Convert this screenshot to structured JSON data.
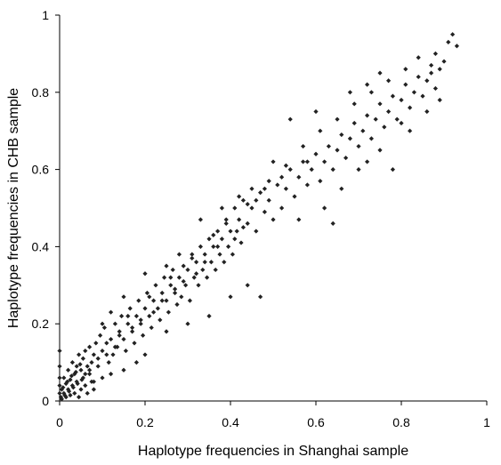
{
  "chart_data": {
    "type": "scatter",
    "xlabel": "Haplotype frequencies in Shanghai sample",
    "ylabel": "Haplotype frequencies in CHB sample",
    "xlim": [
      0,
      1
    ],
    "ylim": [
      0,
      1
    ],
    "xticks": [
      "0",
      "0.2",
      "0.4",
      "0.6",
      "0.8",
      "1"
    ],
    "yticks": [
      "0",
      "0.2",
      "0.4",
      "0.6",
      "0.8",
      "1"
    ],
    "grid": false,
    "legend": "none",
    "marker_color": "#222222",
    "points": [
      [
        0.005,
        0.005
      ],
      [
        0.01,
        0.02
      ],
      [
        0.015,
        0.01
      ],
      [
        0.02,
        0.03
      ],
      [
        0.025,
        0.015
      ],
      [
        0.03,
        0.04
      ],
      [
        0.035,
        0.02
      ],
      [
        0.04,
        0.05
      ],
      [
        0.045,
        0.01
      ],
      [
        0.05,
        0.03
      ],
      [
        0.055,
        0.06
      ],
      [
        0.06,
        0.04
      ],
      [
        0.065,
        0.02
      ],
      [
        0.07,
        0.07
      ],
      [
        0.075,
        0.05
      ],
      [
        0.08,
        0.03
      ],
      [
        0.005,
        0.03
      ],
      [
        0.01,
        0.06
      ],
      [
        0.015,
        0.045
      ],
      [
        0.02,
        0.08
      ],
      [
        0.025,
        0.055
      ],
      [
        0.03,
        0.1
      ],
      [
        0.035,
        0.07
      ],
      [
        0.04,
        0.09
      ],
      [
        0.045,
        0.12
      ],
      [
        0.05,
        0.08
      ],
      [
        0.055,
        0.11
      ],
      [
        0.06,
        0.13
      ],
      [
        0.065,
        0.09
      ],
      [
        0.07,
        0.14
      ],
      [
        0.075,
        0.1
      ],
      [
        0.08,
        0.12
      ],
      [
        0.0,
        0.13
      ],
      [
        0.0,
        0.09
      ],
      [
        0.0,
        0.06
      ],
      [
        0.0,
        0.04
      ],
      [
        0.0,
        0.02
      ],
      [
        0.003,
        0.01
      ],
      [
        0.008,
        0.035
      ],
      [
        0.012,
        0.015
      ],
      [
        0.018,
        0.05
      ],
      [
        0.022,
        0.025
      ],
      [
        0.028,
        0.065
      ],
      [
        0.032,
        0.035
      ],
      [
        0.038,
        0.075
      ],
      [
        0.042,
        0.045
      ],
      [
        0.048,
        0.095
      ],
      [
        0.052,
        0.055
      ],
      [
        0.085,
        0.15
      ],
      [
        0.09,
        0.11
      ],
      [
        0.095,
        0.17
      ],
      [
        0.1,
        0.13
      ],
      [
        0.105,
        0.19
      ],
      [
        0.11,
        0.15
      ],
      [
        0.115,
        0.1
      ],
      [
        0.12,
        0.16
      ],
      [
        0.125,
        0.12
      ],
      [
        0.13,
        0.2
      ],
      [
        0.135,
        0.14
      ],
      [
        0.14,
        0.18
      ],
      [
        0.145,
        0.22
      ],
      [
        0.15,
        0.16
      ],
      [
        0.155,
        0.13
      ],
      [
        0.16,
        0.2
      ],
      [
        0.165,
        0.24
      ],
      [
        0.17,
        0.18
      ],
      [
        0.175,
        0.15
      ],
      [
        0.18,
        0.22
      ],
      [
        0.185,
        0.26
      ],
      [
        0.19,
        0.2
      ],
      [
        0.195,
        0.17
      ],
      [
        0.2,
        0.24
      ],
      [
        0.205,
        0.28
      ],
      [
        0.21,
        0.22
      ],
      [
        0.215,
        0.19
      ],
      [
        0.22,
        0.26
      ],
      [
        0.225,
        0.3
      ],
      [
        0.23,
        0.24
      ],
      [
        0.235,
        0.21
      ],
      [
        0.24,
        0.28
      ],
      [
        0.245,
        0.32
      ],
      [
        0.25,
        0.26
      ],
      [
        0.255,
        0.23
      ],
      [
        0.26,
        0.3
      ],
      [
        0.265,
        0.34
      ],
      [
        0.27,
        0.28
      ],
      [
        0.275,
        0.25
      ],
      [
        0.28,
        0.32
      ],
      [
        0.285,
        0.27
      ],
      [
        0.29,
        0.35
      ],
      [
        0.295,
        0.3
      ],
      [
        0.3,
        0.34
      ],
      [
        0.305,
        0.26
      ],
      [
        0.31,
        0.38
      ],
      [
        0.315,
        0.32
      ],
      [
        0.32,
        0.36
      ],
      [
        0.325,
        0.3
      ],
      [
        0.33,
        0.4
      ],
      [
        0.335,
        0.34
      ],
      [
        0.34,
        0.38
      ],
      [
        0.345,
        0.32
      ],
      [
        0.35,
        0.42
      ],
      [
        0.355,
        0.36
      ],
      [
        0.36,
        0.4
      ],
      [
        0.365,
        0.34
      ],
      [
        0.37,
        0.44
      ],
      [
        0.375,
        0.38
      ],
      [
        0.38,
        0.42
      ],
      [
        0.385,
        0.36
      ],
      [
        0.39,
        0.46
      ],
      [
        0.395,
        0.4
      ],
      [
        0.4,
        0.44
      ],
      [
        0.405,
        0.38
      ],
      [
        0.41,
        0.5
      ],
      [
        0.415,
        0.44
      ],
      [
        0.42,
        0.47
      ],
      [
        0.425,
        0.41
      ],
      [
        0.43,
        0.52
      ],
      [
        0.44,
        0.46
      ],
      [
        0.45,
        0.5
      ],
      [
        0.46,
        0.44
      ],
      [
        0.47,
        0.54
      ],
      [
        0.48,
        0.49
      ],
      [
        0.49,
        0.52
      ],
      [
        0.5,
        0.47
      ],
      [
        0.51,
        0.56
      ],
      [
        0.52,
        0.5
      ],
      [
        0.53,
        0.55
      ],
      [
        0.54,
        0.6
      ],
      [
        0.55,
        0.53
      ],
      [
        0.56,
        0.58
      ],
      [
        0.57,
        0.62
      ],
      [
        0.58,
        0.56
      ],
      [
        0.59,
        0.6
      ],
      [
        0.6,
        0.64
      ],
      [
        0.61,
        0.57
      ],
      [
        0.62,
        0.62
      ],
      [
        0.63,
        0.66
      ],
      [
        0.64,
        0.6
      ],
      [
        0.65,
        0.65
      ],
      [
        0.66,
        0.69
      ],
      [
        0.67,
        0.63
      ],
      [
        0.68,
        0.68
      ],
      [
        0.69,
        0.72
      ],
      [
        0.7,
        0.66
      ],
      [
        0.71,
        0.7
      ],
      [
        0.72,
        0.74
      ],
      [
        0.73,
        0.68
      ],
      [
        0.74,
        0.73
      ],
      [
        0.75,
        0.77
      ],
      [
        0.76,
        0.71
      ],
      [
        0.77,
        0.75
      ],
      [
        0.78,
        0.79
      ],
      [
        0.79,
        0.73
      ],
      [
        0.8,
        0.78
      ],
      [
        0.81,
        0.82
      ],
      [
        0.82,
        0.76
      ],
      [
        0.83,
        0.8
      ],
      [
        0.84,
        0.84
      ],
      [
        0.85,
        0.79
      ],
      [
        0.86,
        0.83
      ],
      [
        0.87,
        0.87
      ],
      [
        0.88,
        0.81
      ],
      [
        0.89,
        0.86
      ],
      [
        0.91,
        0.93
      ],
      [
        0.93,
        0.92
      ],
      [
        0.92,
        0.95
      ],
      [
        0.88,
        0.9
      ],
      [
        0.54,
        0.73
      ],
      [
        0.6,
        0.75
      ],
      [
        0.68,
        0.8
      ],
      [
        0.72,
        0.82
      ],
      [
        0.75,
        0.85
      ],
      [
        0.45,
        0.55
      ],
      [
        0.5,
        0.62
      ],
      [
        0.33,
        0.47
      ],
      [
        0.38,
        0.5
      ],
      [
        0.25,
        0.35
      ],
      [
        0.2,
        0.33
      ],
      [
        0.15,
        0.27
      ],
      [
        0.12,
        0.23
      ],
      [
        0.1,
        0.2
      ],
      [
        0.28,
        0.38
      ],
      [
        0.42,
        0.53
      ],
      [
        0.47,
        0.27
      ],
      [
        0.44,
        0.3
      ],
      [
        0.4,
        0.27
      ],
      [
        0.35,
        0.22
      ],
      [
        0.3,
        0.2
      ],
      [
        0.25,
        0.18
      ],
      [
        0.2,
        0.12
      ],
      [
        0.18,
        0.1
      ],
      [
        0.15,
        0.08
      ],
      [
        0.12,
        0.07
      ],
      [
        0.1,
        0.06
      ],
      [
        0.08,
        0.05
      ],
      [
        0.56,
        0.47
      ],
      [
        0.62,
        0.5
      ],
      [
        0.66,
        0.55
      ],
      [
        0.7,
        0.6
      ],
      [
        0.75,
        0.65
      ],
      [
        0.78,
        0.6
      ],
      [
        0.82,
        0.7
      ],
      [
        0.86,
        0.75
      ],
      [
        0.89,
        0.78
      ],
      [
        0.64,
        0.46
      ],
      [
        0.72,
        0.62
      ],
      [
        0.8,
        0.72
      ],
      [
        0.58,
        0.62
      ],
      [
        0.52,
        0.58
      ],
      [
        0.48,
        0.55
      ],
      [
        0.46,
        0.52
      ],
      [
        0.43,
        0.45
      ],
      [
        0.41,
        0.42
      ],
      [
        0.37,
        0.4
      ],
      [
        0.34,
        0.36
      ],
      [
        0.32,
        0.33
      ],
      [
        0.29,
        0.31
      ],
      [
        0.27,
        0.29
      ],
      [
        0.24,
        0.26
      ],
      [
        0.22,
        0.23
      ],
      [
        0.19,
        0.21
      ],
      [
        0.17,
        0.19
      ],
      [
        0.14,
        0.17
      ],
      [
        0.13,
        0.14
      ],
      [
        0.11,
        0.12
      ],
      [
        0.09,
        0.09
      ],
      [
        0.07,
        0.08
      ],
      [
        0.06,
        0.07
      ],
      [
        0.16,
        0.22
      ],
      [
        0.21,
        0.27
      ],
      [
        0.26,
        0.32
      ],
      [
        0.31,
        0.37
      ],
      [
        0.36,
        0.43
      ],
      [
        0.39,
        0.47
      ],
      [
        0.44,
        0.51
      ],
      [
        0.49,
        0.57
      ],
      [
        0.53,
        0.61
      ],
      [
        0.57,
        0.66
      ],
      [
        0.61,
        0.7
      ],
      [
        0.65,
        0.73
      ],
      [
        0.69,
        0.77
      ],
      [
        0.73,
        0.8
      ],
      [
        0.77,
        0.83
      ],
      [
        0.81,
        0.86
      ],
      [
        0.84,
        0.89
      ],
      [
        0.87,
        0.85
      ],
      [
        0.9,
        0.88
      ]
    ]
  }
}
